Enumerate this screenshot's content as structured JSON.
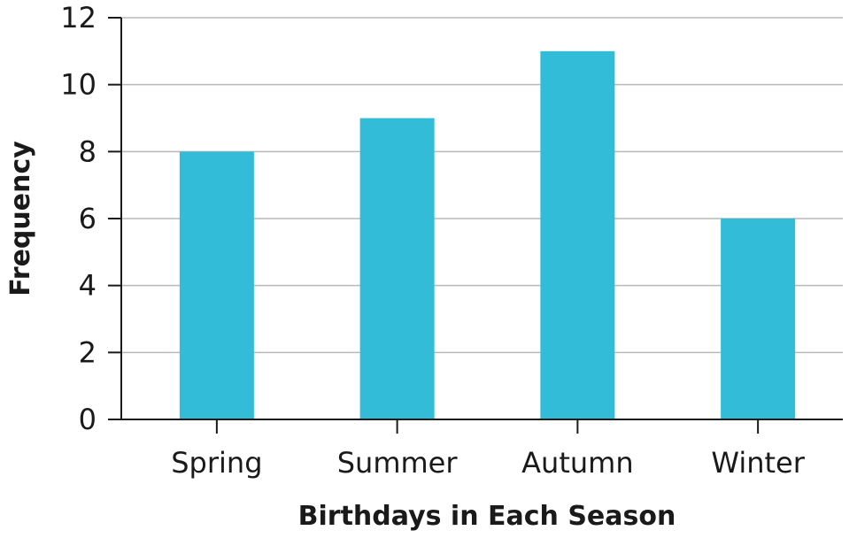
{
  "chart_data": {
    "type": "bar",
    "categories": [
      "Spring",
      "Summer",
      "Autumn",
      "Winter"
    ],
    "series": [
      {
        "values": [
          8,
          9,
          11,
          6
        ]
      }
    ],
    "xlabel": "Birthdays in Each Season",
    "ylabel": "Frequency",
    "ylim": [
      0,
      12
    ],
    "yticks": [
      "0",
      "2",
      "4",
      "6",
      "8",
      "10",
      "12"
    ],
    "grid": true,
    "bar_color": "#33bcd7"
  }
}
